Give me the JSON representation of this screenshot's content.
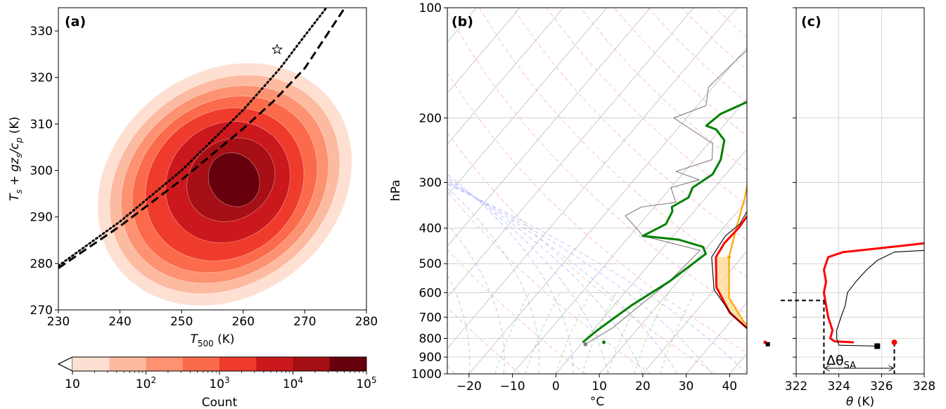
{
  "colors": {
    "cmap": [
      "#fee0d2",
      "#fcbba1",
      "#fc9272",
      "#fb6a4a",
      "#ef3b2c",
      "#cb181d",
      "#a50f15",
      "#67000d"
    ],
    "parcel": "#ffa500",
    "environment": "#ff0000",
    "dewpoint": "#008000",
    "reanalysis": "#000000",
    "reanalysis_dew": "#808080"
  },
  "chart_data": [
    {
      "type": "heatmap",
      "panel_label": "(a)",
      "xlabel_main": "T",
      "xlabel_sub": "500",
      "xlabel_unit": " (K)",
      "ylabel": "T_s + gz_s/c_p (K)",
      "ylabel_parts": {
        "t": "T",
        "s1": "s",
        "mid": " + gz",
        "s2": "s",
        "div": "/c",
        "p": "p",
        "unit": " (K)"
      },
      "xlim": [
        230,
        280
      ],
      "ylim": [
        270,
        335
      ],
      "xticks": [
        "230",
        "240",
        "250",
        "260",
        "270",
        "280"
      ],
      "yticks": [
        "270",
        "280",
        "290",
        "300",
        "310",
        "320",
        "330"
      ],
      "star_point": [
        265.5,
        326
      ],
      "lines": [
        {
          "name": "dotted",
          "points": [
            [
              230,
              279.5
            ],
            [
              240,
              289
            ],
            [
              250,
              300
            ],
            [
              260,
              313
            ],
            [
              266,
              322
            ],
            [
              270,
              329
            ],
            [
              273.5,
              335
            ]
          ]
        },
        {
          "name": "dashed",
          "points": [
            [
              230,
              279
            ],
            [
              240,
              288
            ],
            [
              250,
              298
            ],
            [
              260,
              309
            ],
            [
              265,
              315
            ],
            [
              270,
              322
            ],
            [
              276.5,
              335
            ]
          ]
        }
      ],
      "colorbar": {
        "label": "Count",
        "tick_labels": [
          {
            "base": "10",
            "exp": ""
          },
          {
            "base": "10",
            "exp": "2"
          },
          {
            "base": "10",
            "exp": "3"
          },
          {
            "base": "10",
            "exp": "4"
          },
          {
            "base": "10",
            "exp": "5"
          }
        ]
      }
    },
    {
      "type": "line",
      "panel_label": "(b)",
      "xlabel": "°C",
      "ylabel": "hPa",
      "xlim": [
        -25,
        44
      ],
      "ylim": [
        1000,
        100
      ],
      "xticks": [
        "−20",
        "−10",
        "0",
        "10",
        "20",
        "30",
        "40"
      ],
      "yticks": [
        "100",
        "200",
        "300",
        "400",
        "500",
        "600",
        "700",
        "800",
        "900",
        "1000"
      ],
      "series": [
        {
          "role": "environment",
          "points": [
            [
              42,
              820
            ],
            [
              36,
              760
            ],
            [
              28,
              680
            ],
            [
              20,
              580
            ],
            [
              14,
              480
            ],
            [
              13.2,
              440
            ],
            [
              13.5,
              400
            ],
            [
              13,
              360
            ],
            [
              12,
              330
            ],
            [
              10,
              290
            ],
            [
              9,
              255
            ],
            [
              8,
              225
            ],
            [
              7,
              200
            ],
            [
              6.5,
              185
            ],
            [
              5.5,
              175
            ],
            [
              6,
              165
            ],
            [
              8,
              145
            ],
            [
              8,
              140
            ],
            [
              9,
              125
            ],
            [
              10,
              115
            ],
            [
              12,
              102
            ],
            [
              13,
              100
            ]
          ]
        },
        {
          "role": "reanalysis",
          "points": [
            [
              43,
              830
            ],
            [
              37,
              770
            ],
            [
              29,
              690
            ],
            [
              20,
              590
            ],
            [
              13,
              480
            ],
            [
              12.5,
              450
            ],
            [
              12,
              420
            ],
            [
              13,
              390
            ],
            [
              12.2,
              360
            ],
            [
              11,
              320
            ],
            [
              10,
              290
            ],
            [
              9,
              260
            ],
            [
              7.5,
              225
            ],
            [
              7,
              200
            ],
            [
              6,
              180
            ],
            [
              7,
              160
            ],
            [
              8,
              140
            ],
            [
              9.5,
              120
            ],
            [
              11,
              110
            ],
            [
              13,
              100
            ]
          ]
        },
        {
          "role": "dewpoint",
          "points": [
            [
              0,
              820
            ],
            [
              1,
              760
            ],
            [
              4,
              650
            ],
            [
              8,
              560
            ],
            [
              11,
              470
            ],
            [
              9,
              450
            ],
            [
              2,
              430
            ],
            [
              -7,
              420
            ],
            [
              -4,
              390
            ],
            [
              -5,
              360
            ],
            [
              -6,
              350
            ],
            [
              -4,
              330
            ],
            [
              -5,
              310
            ],
            [
              -3,
              285
            ],
            [
              -4,
              260
            ],
            [
              -7,
              230
            ],
            [
              -11,
              215
            ],
            [
              -14,
              210
            ],
            [
              -13,
              195
            ],
            [
              -9,
              180
            ],
            [
              -7,
              165
            ],
            [
              -6,
              150
            ],
            [
              -5,
              135
            ],
            [
              -5,
              120
            ],
            [
              -5,
              110
            ],
            [
              -4,
              100
            ]
          ]
        },
        {
          "role": "reanalysis_dew",
          "points": [
            [
              1,
              830
            ],
            [
              4,
              750
            ],
            [
              8,
              560
            ],
            [
              9,
              460
            ],
            [
              -7,
              420
            ],
            [
              -10,
              400
            ],
            [
              -15,
              370
            ],
            [
              -13,
              350
            ],
            [
              -6,
              340
            ],
            [
              -10,
              310
            ],
            [
              -5,
              295
            ],
            [
              -12,
              280
            ],
            [
              -6,
              260
            ],
            [
              -9,
              235
            ],
            [
              -23,
              200
            ],
            [
              -18,
              185
            ],
            [
              -21,
              165
            ],
            [
              -20,
              140
            ],
            [
              -19,
              125
            ],
            [
              -15,
              110
            ],
            [
              -12,
              100
            ]
          ]
        },
        {
          "role": "parcel",
          "points": [
            [
              42,
              820
            ],
            [
              33,
              720
            ],
            [
              25,
              620
            ],
            [
              17,
              480
            ],
            [
              13,
              400
            ],
            [
              9,
              330
            ],
            [
              5,
              280
            ],
            [
              0,
              240
            ],
            [
              -4,
              210
            ],
            [
              -8,
              185
            ],
            [
              -10,
              160
            ],
            [
              -9,
              130
            ],
            [
              -7,
              110
            ],
            [
              -6,
              100
            ]
          ]
        }
      ]
    },
    {
      "type": "line",
      "panel_label": "(c)",
      "xlabel_main": "θ",
      "xlabel_unit": " (K)",
      "xlim": [
        322,
        328
      ],
      "ylim": [
        1000,
        100
      ],
      "xticks": [
        "322",
        "324",
        "326",
        "328"
      ],
      "annotation": {
        "main": "Δθ",
        "sub": "SA"
      },
      "dashed_level_hPa": 630,
      "dashed_x": 323.3,
      "square_point": [
        325.8,
        840
      ],
      "circle_point": [
        326.6,
        820
      ],
      "series": [
        {
          "role": "environment",
          "points": [
            [
              324.7,
              820
            ],
            [
              323.8,
              815
            ],
            [
              323.6,
              800
            ],
            [
              323.7,
              760
            ],
            [
              323.5,
              700
            ],
            [
              323.4,
              650
            ],
            [
              323.3,
              600
            ],
            [
              323.4,
              560
            ],
            [
              323.3,
              520
            ],
            [
              323.5,
              480
            ],
            [
              324.2,
              465
            ],
            [
              325,
              460
            ],
            [
              326.5,
              450
            ],
            [
              328,
              440
            ]
          ]
        },
        {
          "role": "reanalysis",
          "points": [
            [
              325.8,
              840
            ],
            [
              324,
              835
            ],
            [
              323.9,
              800
            ],
            [
              323.9,
              760
            ],
            [
              324.1,
              700
            ],
            [
              324.3,
              650
            ],
            [
              324.4,
              600
            ],
            [
              324.8,
              560
            ],
            [
              325.3,
              520
            ],
            [
              325.8,
              490
            ],
            [
              326.6,
              465
            ],
            [
              328,
              460
            ]
          ]
        }
      ]
    }
  ]
}
